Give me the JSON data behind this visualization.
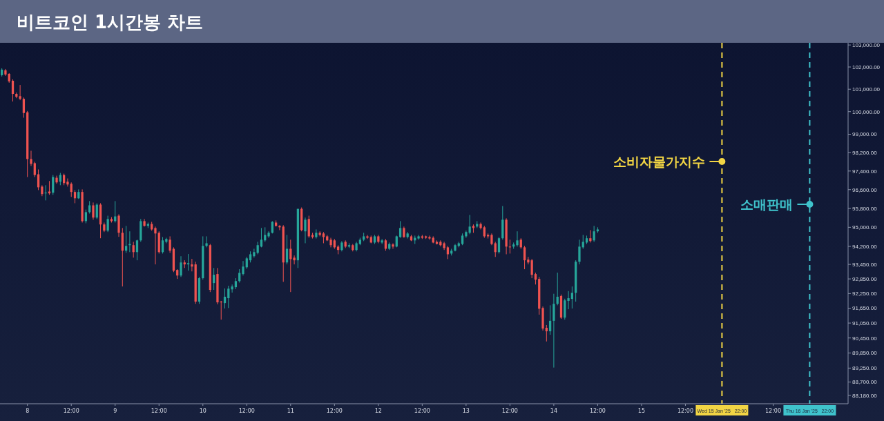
{
  "chart_data": {
    "type": "candlestick",
    "title": "비트코인 1시간봉 차트",
    "x": [
      "2025-01-07T17:00",
      "2025-01-07T18:00",
      "2025-01-07T19:00",
      "2025-01-07T20:00",
      "2025-01-07T21:00",
      "2025-01-07T22:00",
      "2025-01-07T23:00",
      "2025-01-08T00:00",
      "2025-01-08T01:00",
      "2025-01-08T02:00",
      "2025-01-08T03:00",
      "2025-01-08T04:00",
      "2025-01-08T05:00",
      "2025-01-08T06:00",
      "2025-01-08T07:00",
      "2025-01-08T08:00",
      "2025-01-08T09:00",
      "2025-01-08T10:00",
      "2025-01-08T11:00",
      "2025-01-08T12:00",
      "2025-01-08T13:00",
      "2025-01-08T14:00",
      "2025-01-08T15:00",
      "2025-01-08T16:00",
      "2025-01-08T17:00",
      "2025-01-08T18:00",
      "2025-01-08T19:00",
      "2025-01-08T20:00",
      "2025-01-08T21:00",
      "2025-01-08T22:00",
      "2025-01-08T23:00",
      "2025-01-09T00:00",
      "2025-01-09T01:00",
      "2025-01-09T02:00",
      "2025-01-09T03:00",
      "2025-01-09T04:00",
      "2025-01-09T05:00",
      "2025-01-09T06:00",
      "2025-01-09T07:00",
      "2025-01-09T08:00",
      "2025-01-09T09:00",
      "2025-01-09T10:00",
      "2025-01-09T11:00",
      "2025-01-09T12:00",
      "2025-01-09T13:00",
      "2025-01-09T14:00",
      "2025-01-09T15:00",
      "2025-01-09T16:00",
      "2025-01-09T17:00",
      "2025-01-09T18:00",
      "2025-01-09T19:00",
      "2025-01-09T20:00",
      "2025-01-09T21:00",
      "2025-01-09T22:00",
      "2025-01-09T23:00",
      "2025-01-10T00:00",
      "2025-01-10T01:00",
      "2025-01-10T02:00",
      "2025-01-10T03:00",
      "2025-01-10T04:00",
      "2025-01-10T05:00",
      "2025-01-10T06:00",
      "2025-01-10T07:00",
      "2025-01-10T08:00",
      "2025-01-10T09:00",
      "2025-01-10T10:00",
      "2025-01-10T11:00",
      "2025-01-10T12:00",
      "2025-01-10T13:00",
      "2025-01-10T14:00",
      "2025-01-10T15:00",
      "2025-01-10T16:00",
      "2025-01-10T17:00",
      "2025-01-10T18:00",
      "2025-01-10T19:00",
      "2025-01-10T20:00",
      "2025-01-10T21:00",
      "2025-01-10T22:00",
      "2025-01-10T23:00",
      "2025-01-11T00:00",
      "2025-01-11T01:00",
      "2025-01-11T02:00",
      "2025-01-11T03:00",
      "2025-01-11T04:00",
      "2025-01-11T05:00",
      "2025-01-11T06:00",
      "2025-01-11T07:00",
      "2025-01-11T08:00",
      "2025-01-11T09:00",
      "2025-01-11T10:00",
      "2025-01-11T11:00",
      "2025-01-11T12:00",
      "2025-01-11T13:00",
      "2025-01-11T14:00",
      "2025-01-11T15:00",
      "2025-01-11T16:00",
      "2025-01-11T17:00",
      "2025-01-11T18:00",
      "2025-01-11T19:00",
      "2025-01-11T20:00",
      "2025-01-11T21:00",
      "2025-01-11T22:00",
      "2025-01-11T23:00",
      "2025-01-12T00:00",
      "2025-01-12T01:00",
      "2025-01-12T02:00",
      "2025-01-12T03:00",
      "2025-01-12T04:00",
      "2025-01-12T05:00",
      "2025-01-12T06:00",
      "2025-01-12T07:00",
      "2025-01-12T08:00",
      "2025-01-12T09:00",
      "2025-01-12T10:00",
      "2025-01-12T11:00",
      "2025-01-12T12:00",
      "2025-01-12T13:00",
      "2025-01-12T14:00",
      "2025-01-12T15:00",
      "2025-01-12T16:00",
      "2025-01-12T17:00",
      "2025-01-12T18:00",
      "2025-01-12T19:00",
      "2025-01-12T20:00",
      "2025-01-12T21:00",
      "2025-01-12T22:00",
      "2025-01-12T23:00",
      "2025-01-13T00:00",
      "2025-01-13T01:00",
      "2025-01-13T02:00",
      "2025-01-13T03:00",
      "2025-01-13T04:00",
      "2025-01-13T05:00",
      "2025-01-13T06:00",
      "2025-01-13T07:00",
      "2025-01-13T08:00",
      "2025-01-13T09:00",
      "2025-01-13T10:00",
      "2025-01-13T11:00",
      "2025-01-13T12:00",
      "2025-01-13T13:00",
      "2025-01-13T14:00",
      "2025-01-13T15:00",
      "2025-01-13T16:00",
      "2025-01-13T17:00",
      "2025-01-13T18:00",
      "2025-01-13T19:00",
      "2025-01-13T20:00",
      "2025-01-13T21:00",
      "2025-01-13T22:00",
      "2025-01-13T23:00",
      "2025-01-14T00:00",
      "2025-01-14T01:00",
      "2025-01-14T02:00",
      "2025-01-14T03:00",
      "2025-01-14T04:00",
      "2025-01-14T05:00",
      "2025-01-14T06:00",
      "2025-01-14T07:00",
      "2025-01-14T08:00",
      "2025-01-14T09:00",
      "2025-01-14T10:00",
      "2025-01-14T11:00",
      "2025-01-14T12:00"
    ],
    "ohlc": [
      [
        101630,
        101940,
        101570,
        101880
      ],
      [
        101850,
        101910,
        101600,
        101660
      ],
      [
        101690,
        101720,
        101290,
        101350
      ],
      [
        101380,
        101440,
        100450,
        100790
      ],
      [
        100790,
        100850,
        100600,
        100660
      ],
      [
        100690,
        101190,
        100510,
        100570
      ],
      [
        100570,
        100630,
        99730,
        99940
      ],
      [
        99970,
        100030,
        97140,
        97920
      ],
      [
        97920,
        98280,
        97620,
        97710
      ],
      [
        97740,
        97800,
        97140,
        97230
      ],
      [
        97260,
        97470,
        96580,
        96700
      ],
      [
        96730,
        96790,
        96320,
        96410
      ],
      [
        96440,
        96790,
        96140,
        96470
      ],
      [
        96520,
        96970,
        96380,
        96440
      ],
      [
        96470,
        97230,
        96380,
        97140
      ],
      [
        97110,
        97200,
        96850,
        96910
      ],
      [
        96940,
        97320,
        96790,
        97230
      ],
      [
        97230,
        97290,
        96790,
        96880
      ],
      [
        96940,
        97080,
        96730,
        96820
      ],
      [
        96850,
        96910,
        96290,
        96500
      ],
      [
        96500,
        96580,
        96020,
        96230
      ],
      [
        96230,
        96610,
        96200,
        96500
      ],
      [
        96500,
        96610,
        95200,
        95260
      ],
      [
        95260,
        95750,
        95170,
        95640
      ],
      [
        95640,
        96110,
        95580,
        95930
      ],
      [
        95930,
        96050,
        95320,
        95410
      ],
      [
        95410,
        96020,
        95350,
        95960
      ],
      [
        95960,
        96020,
        94540,
        95120
      ],
      [
        95120,
        95200,
        94800,
        94860
      ],
      [
        94860,
        95490,
        94800,
        95350
      ],
      [
        95350,
        95430,
        95200,
        95260
      ],
      [
        95260,
        96110,
        95200,
        95460
      ],
      [
        95490,
        95550,
        94600,
        94770
      ],
      [
        94770,
        94970,
        92540,
        94020
      ],
      [
        94020,
        95060,
        93930,
        94220
      ],
      [
        94250,
        94830,
        93960,
        94300
      ],
      [
        94250,
        94390,
        93730,
        93960
      ],
      [
        93960,
        94480,
        93620,
        94450
      ],
      [
        94450,
        95350,
        94390,
        95260
      ],
      [
        95260,
        95350,
        95030,
        95060
      ],
      [
        95060,
        95200,
        94970,
        95140
      ],
      [
        95140,
        95230,
        94860,
        94910
      ],
      [
        94970,
        95030,
        93450,
        94740
      ],
      [
        94770,
        94830,
        93900,
        93960
      ],
      [
        93960,
        94590,
        93900,
        94450
      ],
      [
        94390,
        94560,
        94330,
        94510
      ],
      [
        94480,
        94620,
        93930,
        94020
      ],
      [
        94100,
        94160,
        93130,
        93190
      ],
      [
        93220,
        93250,
        92850,
        92990
      ],
      [
        92990,
        93790,
        92930,
        93530
      ],
      [
        93530,
        93620,
        93300,
        93450
      ],
      [
        93450,
        93880,
        93190,
        93500
      ],
      [
        93450,
        93680,
        93160,
        93360
      ],
      [
        93450,
        93560,
        91830,
        91920
      ],
      [
        91920,
        92930,
        91830,
        92880
      ],
      [
        92880,
        94620,
        92820,
        94220
      ],
      [
        94220,
        94620,
        94160,
        94330
      ],
      [
        94250,
        94300,
        92310,
        92400
      ],
      [
        92680,
        93300,
        92400,
        93020
      ],
      [
        93050,
        93300,
        91810,
        91890
      ],
      [
        91920,
        91950,
        91190,
        91890
      ],
      [
        91860,
        92460,
        91640,
        92120
      ],
      [
        92060,
        92570,
        91660,
        92450
      ],
      [
        92420,
        92620,
        92290,
        92540
      ],
      [
        92510,
        92880,
        92430,
        92760
      ],
      [
        92760,
        93250,
        92700,
        93100
      ],
      [
        93050,
        93590,
        92990,
        93360
      ],
      [
        93330,
        93760,
        93270,
        93700
      ],
      [
        93620,
        93990,
        93530,
        93870
      ],
      [
        93790,
        94100,
        93730,
        93960
      ],
      [
        93930,
        94390,
        93870,
        94250
      ],
      [
        94190,
        94970,
        94160,
        94480
      ],
      [
        94450,
        95000,
        94390,
        94680
      ],
      [
        94620,
        94830,
        94560,
        94770
      ],
      [
        94770,
        95260,
        94740,
        95230
      ],
      [
        95200,
        95290,
        95030,
        95060
      ],
      [
        95060,
        95090,
        94880,
        95000
      ],
      [
        95030,
        95090,
        92730,
        93530
      ],
      [
        93530,
        94680,
        93450,
        94100
      ],
      [
        94100,
        94480,
        92310,
        93670
      ],
      [
        93730,
        93820,
        93450,
        93620
      ],
      [
        93620,
        95780,
        93300,
        95780
      ],
      [
        95780,
        95840,
        94830,
        94880
      ],
      [
        94830,
        95410,
        94330,
        95320
      ],
      [
        95350,
        95490,
        94560,
        94620
      ],
      [
        94680,
        94770,
        94530,
        94590
      ],
      [
        94590,
        94910,
        94530,
        94770
      ],
      [
        94770,
        94830,
        94620,
        94680
      ],
      [
        94740,
        94800,
        94330,
        94590
      ],
      [
        94620,
        94680,
        94420,
        94450
      ],
      [
        94480,
        94560,
        94160,
        94250
      ],
      [
        94450,
        94510,
        94100,
        94160
      ],
      [
        94190,
        94250,
        93870,
        94050
      ],
      [
        94050,
        94420,
        93990,
        94360
      ],
      [
        94390,
        94450,
        94130,
        94190
      ],
      [
        94190,
        94330,
        94130,
        94250
      ],
      [
        94250,
        94300,
        93990,
        94050
      ],
      [
        94050,
        94390,
        93990,
        94330
      ],
      [
        94300,
        94560,
        94250,
        94480
      ],
      [
        94480,
        94770,
        94420,
        94620
      ],
      [
        94620,
        94680,
        94510,
        94560
      ],
      [
        94590,
        94650,
        94330,
        94360
      ],
      [
        94360,
        94680,
        94300,
        94620
      ],
      [
        94620,
        94680,
        94330,
        94390
      ],
      [
        94360,
        94510,
        94300,
        94450
      ],
      [
        94450,
        94510,
        94020,
        94100
      ],
      [
        94100,
        94360,
        94050,
        94300
      ],
      [
        94280,
        94330,
        94100,
        94190
      ],
      [
        94190,
        94650,
        94160,
        94620
      ],
      [
        94590,
        95260,
        94560,
        94970
      ],
      [
        94970,
        95030,
        94560,
        94590
      ],
      [
        94590,
        94800,
        94530,
        94740
      ],
      [
        94620,
        94680,
        94420,
        94450
      ],
      [
        94450,
        94650,
        94300,
        94560
      ],
      [
        94530,
        94680,
        94480,
        94620
      ],
      [
        94620,
        94680,
        94510,
        94560
      ],
      [
        94620,
        94650,
        94510,
        94560
      ],
      [
        94590,
        94650,
        94480,
        94530
      ],
      [
        94560,
        94620,
        94330,
        94360
      ],
      [
        94390,
        94450,
        94280,
        94300
      ],
      [
        94390,
        94450,
        94200,
        94250
      ],
      [
        94330,
        94390,
        94050,
        94130
      ],
      [
        94160,
        94220,
        93670,
        93870
      ],
      [
        93900,
        94100,
        93820,
        94020
      ],
      [
        94020,
        94300,
        93990,
        94250
      ],
      [
        94220,
        94390,
        94160,
        94330
      ],
      [
        94300,
        94740,
        94250,
        94650
      ],
      [
        94620,
        94860,
        94560,
        94800
      ],
      [
        94770,
        95520,
        94710,
        95030
      ],
      [
        95060,
        95120,
        94770,
        94970
      ],
      [
        95030,
        95260,
        94970,
        95140
      ],
      [
        95140,
        95200,
        94910,
        94970
      ],
      [
        95000,
        95060,
        94560,
        94620
      ],
      [
        94680,
        94740,
        94530,
        94620
      ],
      [
        94680,
        94740,
        94250,
        94300
      ],
      [
        94330,
        94390,
        93760,
        93960
      ],
      [
        93960,
        94590,
        93900,
        94540
      ],
      [
        94540,
        95900,
        94480,
        95320
      ],
      [
        95320,
        95380,
        93870,
        94190
      ],
      [
        94190,
        94480,
        93900,
        94160
      ],
      [
        94190,
        94360,
        94100,
        94280
      ],
      [
        94250,
        94830,
        94190,
        94450
      ],
      [
        94480,
        94540,
        94100,
        94160
      ],
      [
        94160,
        94220,
        93250,
        93620
      ],
      [
        93650,
        93760,
        93450,
        93530
      ],
      [
        93620,
        93680,
        92880,
        93020
      ],
      [
        93050,
        93110,
        92620,
        92820
      ],
      [
        92850,
        92930,
        91390,
        91630
      ],
      [
        91660,
        91720,
        90750,
        90830
      ],
      [
        90860,
        90970,
        90310,
        90720
      ],
      [
        90720,
        91770,
        90580,
        91140
      ],
      [
        91140,
        92240,
        89270,
        91830
      ],
      [
        91830,
        93110,
        91770,
        92120
      ],
      [
        92150,
        92210,
        91220,
        91270
      ],
      [
        91270,
        92040,
        91190,
        91970
      ],
      [
        91950,
        92350,
        91610,
        92060
      ],
      [
        92030,
        92540,
        91640,
        92280
      ],
      [
        92280,
        93620,
        91920,
        93560
      ],
      [
        93560,
        94480,
        93450,
        94190
      ],
      [
        94160,
        94680,
        94100,
        94390
      ],
      [
        94360,
        94650,
        94300,
        94540
      ],
      [
        94540,
        94880,
        94360,
        94420
      ],
      [
        94450,
        95060,
        94390,
        94830
      ],
      [
        94830,
        95000,
        94770,
        94910
      ]
    ],
    "log": true,
    "xlim": [
      "2025-01-07T16:30",
      "2025-01-17T08:30"
    ],
    "xticks": [
      {
        "value": "2025-01-08",
        "label": "8"
      },
      {
        "value": "2025-01-08T12:00",
        "label": "12:00"
      },
      {
        "value": "2025-01-09",
        "label": "9"
      },
      {
        "value": "2025-01-09T12:00",
        "label": "12:00"
      },
      {
        "value": "2025-01-10",
        "label": "10"
      },
      {
        "value": "2025-01-10T12:00",
        "label": "12:00"
      },
      {
        "value": "2025-01-11",
        "label": "11"
      },
      {
        "value": "2025-01-11T12:00",
        "label": "12:00"
      },
      {
        "value": "2025-01-12",
        "label": "12"
      },
      {
        "value": "2025-01-12T12:00",
        "label": "12:00"
      },
      {
        "value": "2025-01-13",
        "label": "13"
      },
      {
        "value": "2025-01-13T12:00",
        "label": "12:00"
      },
      {
        "value": "2025-01-14",
        "label": "14"
      },
      {
        "value": "2025-01-14T12:00",
        "label": "12:00"
      },
      {
        "value": "2025-01-15",
        "label": "15"
      },
      {
        "value": "2025-01-15T12:00",
        "label": "12:00"
      },
      {
        "value": "2025-01-15T22:00",
        "label": "Wed 15 Jan '25   22:00"
      },
      {
        "value": "2025-01-16T12:00",
        "label": "12:00"
      },
      {
        "value": "2025-01-16T22:00",
        "label": "Thu 16 Jan '25   22:00"
      }
    ],
    "ylim": [
      87850,
      103100
    ],
    "yticks": [
      {
        "value": 103000,
        "label": "103,000.00"
      },
      {
        "value": 102000,
        "label": "102,000.00"
      },
      {
        "value": 101000,
        "label": "101,000.00"
      },
      {
        "value": 100000,
        "label": "100,000.00"
      },
      {
        "value": 99000,
        "label": "99,000.00"
      },
      {
        "value": 98200,
        "label": "98,200.00"
      },
      {
        "value": 97400,
        "label": "97,400.00"
      },
      {
        "value": 96600,
        "label": "96,600.00"
      },
      {
        "value": 95800,
        "label": "95,800.00"
      },
      {
        "value": 95000,
        "label": "95,000.00"
      },
      {
        "value": 94200,
        "label": "94,200.00"
      },
      {
        "value": 93450,
        "label": "93,450.00"
      },
      {
        "value": 92850,
        "label": "92,850.00"
      },
      {
        "value": 92250,
        "label": "92,250.00"
      },
      {
        "value": 91650,
        "label": "91,650.00"
      },
      {
        "value": 91050,
        "label": "91,050.00"
      },
      {
        "value": 90450,
        "label": "90,450.00"
      },
      {
        "value": 89850,
        "label": "89,850.00"
      },
      {
        "value": 89250,
        "label": "89,250.00"
      },
      {
        "value": 88700,
        "label": "88,700.00"
      },
      {
        "value": 88180,
        "label": "88,180.00"
      }
    ],
    "ref_lines": [
      {
        "axis": "x",
        "value": "2025-01-15T22:00",
        "label": "소비자물가지수",
        "color": "#f2d544",
        "line_style": "dashed"
      },
      {
        "axis": "x",
        "value": "2025-01-16T22:00",
        "label": "소매판매",
        "color": "#3fc3cc",
        "line_style": "dashed"
      }
    ],
    "grid": false
  }
}
